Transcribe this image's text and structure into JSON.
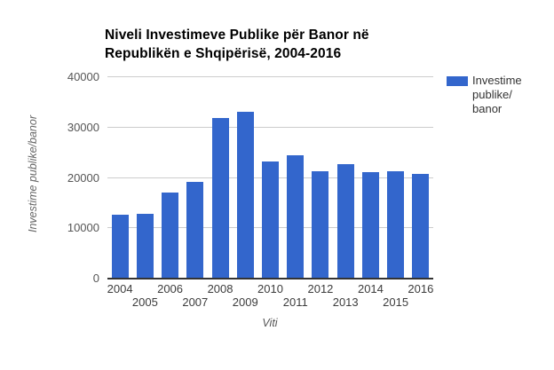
{
  "title_lines": [
    "Niveli Investimeve Publike për Banor në",
    "Republikën e Shqipërisë, 2004-2016"
  ],
  "legend": {
    "lines": [
      "Investime",
      "publike/",
      "banor"
    ]
  },
  "colors": {
    "bar": "#3366cc",
    "gridline": "#cccccc",
    "baseline": "#333333",
    "title_text": "#000000",
    "axis_label_text": "#555555"
  },
  "chart_data": {
    "type": "bar",
    "title": "Niveli Investimeve Publike për Banor në Republikën e Shqipërisë, 2004-2016",
    "categories": [
      "2004",
      "2005",
      "2006",
      "2007",
      "2008",
      "2009",
      "2010",
      "2011",
      "2012",
      "2013",
      "2014",
      "2015",
      "2016"
    ],
    "values": [
      12500,
      12700,
      17000,
      19000,
      31700,
      32900,
      23100,
      24400,
      21200,
      22600,
      21000,
      21200,
      20600
    ],
    "series_name": "Investime publike/ banor",
    "xlabel": "Viti",
    "ylabel": "Investime publike/banor",
    "ylim": [
      0,
      40000
    ],
    "yticks": [
      0,
      10000,
      20000,
      30000,
      40000
    ],
    "grid": true,
    "legend_position": "right"
  }
}
